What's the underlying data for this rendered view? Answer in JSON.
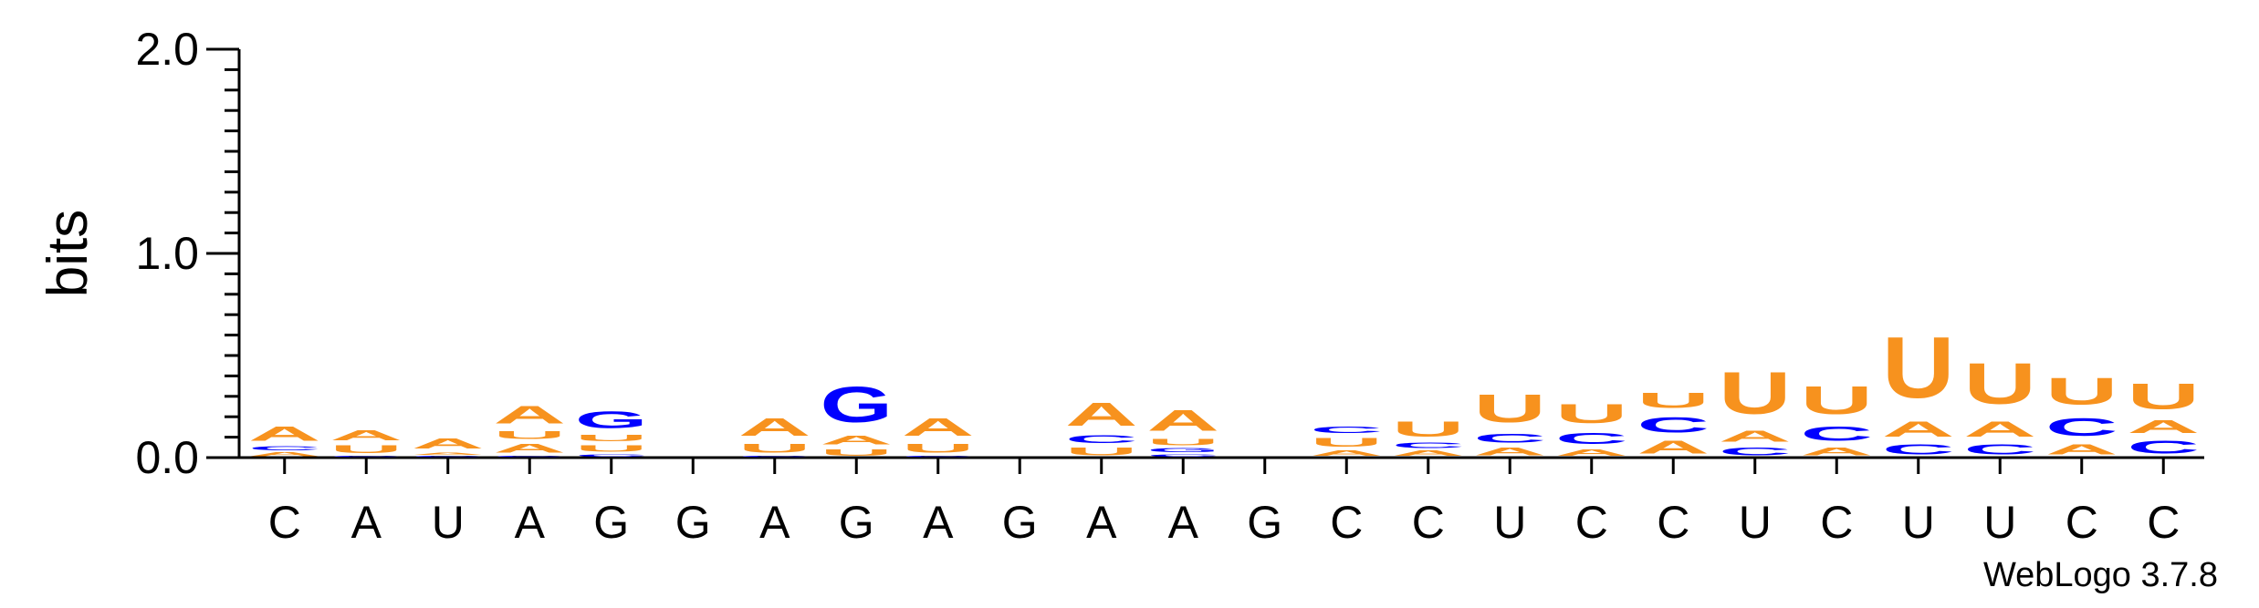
{
  "chart_data": {
    "type": "sequence-logo",
    "ylabel": "bits",
    "ylim": [
      0,
      2.0
    ],
    "yticks": [
      "0.0",
      "1.0",
      "2.0"
    ],
    "credit": "WebLogo 3.7.8",
    "colors": {
      "A": "#f7921e",
      "U": "#f7921e",
      "C": "#0000ff",
      "G": "#0000ff"
    },
    "positions": [
      {
        "label": "C",
        "stack": [
          {
            "letter": "A",
            "value": 0.03
          },
          {
            "letter": "C",
            "value": 0.03
          },
          {
            "letter": "A",
            "value": 0.11
          }
        ]
      },
      {
        "label": "A",
        "stack": [
          {
            "letter": "C",
            "value": 0.01
          },
          {
            "letter": "U",
            "value": 0.06
          },
          {
            "letter": "A",
            "value": 0.08
          }
        ]
      },
      {
        "label": "U",
        "stack": [
          {
            "letter": "C",
            "value": 0.01
          },
          {
            "letter": "A",
            "value": 0.02
          },
          {
            "letter": "A",
            "value": 0.08
          }
        ]
      },
      {
        "label": "A",
        "stack": [
          {
            "letter": "C",
            "value": 0.01
          },
          {
            "letter": "A",
            "value": 0.07
          },
          {
            "letter": "U",
            "value": 0.06
          },
          {
            "letter": "A",
            "value": 0.14
          }
        ]
      },
      {
        "label": "G",
        "stack": [
          {
            "letter": "C",
            "value": 0.02
          },
          {
            "letter": "U",
            "value": 0.05
          },
          {
            "letter": "U",
            "value": 0.05
          },
          {
            "letter": "G",
            "value": 0.13
          }
        ]
      },
      {
        "label": "G",
        "stack": []
      },
      {
        "label": "A",
        "stack": [
          {
            "letter": "C",
            "value": 0.01
          },
          {
            "letter": "U",
            "value": 0.07
          },
          {
            "letter": "A",
            "value": 0.14
          }
        ]
      },
      {
        "label": "G",
        "stack": [
          {
            "letter": "U",
            "value": 0.05
          },
          {
            "letter": "A",
            "value": 0.07
          },
          {
            "letter": "G",
            "value": 0.28
          }
        ]
      },
      {
        "label": "A",
        "stack": [
          {
            "letter": "C",
            "value": 0.01
          },
          {
            "letter": "U",
            "value": 0.07
          },
          {
            "letter": "A",
            "value": 0.14
          }
        ]
      },
      {
        "label": "G",
        "stack": []
      },
      {
        "label": "A",
        "stack": [
          {
            "letter": "U",
            "value": 0.06
          },
          {
            "letter": "C",
            "value": 0.06
          },
          {
            "letter": "A",
            "value": 0.18
          }
        ]
      },
      {
        "label": "A",
        "stack": [
          {
            "letter": "C",
            "value": 0.02
          },
          {
            "letter": "G",
            "value": 0.03
          },
          {
            "letter": "U",
            "value": 0.05
          },
          {
            "letter": "A",
            "value": 0.16
          }
        ]
      },
      {
        "label": "G",
        "stack": []
      },
      {
        "label": "C",
        "stack": [
          {
            "letter": "A",
            "value": 0.04
          },
          {
            "letter": "U",
            "value": 0.07
          },
          {
            "letter": "C",
            "value": 0.05
          }
        ]
      },
      {
        "label": "C",
        "stack": [
          {
            "letter": "A",
            "value": 0.04
          },
          {
            "letter": "C",
            "value": 0.04
          },
          {
            "letter": "U",
            "value": 0.12
          }
        ]
      },
      {
        "label": "U",
        "stack": [
          {
            "letter": "A",
            "value": 0.06
          },
          {
            "letter": "C",
            "value": 0.07
          },
          {
            "letter": "U",
            "value": 0.22
          }
        ]
      },
      {
        "label": "C",
        "stack": [
          {
            "letter": "A",
            "value": 0.05
          },
          {
            "letter": "C",
            "value": 0.09
          },
          {
            "letter": "U",
            "value": 0.15
          }
        ]
      },
      {
        "label": "C",
        "stack": [
          {
            "letter": "A",
            "value": 0.1
          },
          {
            "letter": "C",
            "value": 0.12
          },
          {
            "letter": "U",
            "value": 0.12
          }
        ]
      },
      {
        "label": "U",
        "stack": [
          {
            "letter": "C",
            "value": 0.06
          },
          {
            "letter": "A",
            "value": 0.09
          },
          {
            "letter": "U",
            "value": 0.33
          }
        ]
      },
      {
        "label": "C",
        "stack": [
          {
            "letter": "A",
            "value": 0.06
          },
          {
            "letter": "C",
            "value": 0.11
          },
          {
            "letter": "U",
            "value": 0.22
          }
        ]
      },
      {
        "label": "U",
        "stack": [
          {
            "letter": "C",
            "value": 0.08
          },
          {
            "letter": "A",
            "value": 0.12
          },
          {
            "letter": "U",
            "value": 0.48
          }
        ]
      },
      {
        "label": "U",
        "stack": [
          {
            "letter": "C",
            "value": 0.08
          },
          {
            "letter": "A",
            "value": 0.12
          },
          {
            "letter": "U",
            "value": 0.32
          }
        ]
      },
      {
        "label": "C",
        "stack": [
          {
            "letter": "A",
            "value": 0.08
          },
          {
            "letter": "C",
            "value": 0.14
          },
          {
            "letter": "U",
            "value": 0.21
          }
        ]
      },
      {
        "label": "C",
        "stack": [
          {
            "letter": "C",
            "value": 0.1
          },
          {
            "letter": "A",
            "value": 0.1
          },
          {
            "letter": "U",
            "value": 0.2
          }
        ]
      }
    ]
  }
}
